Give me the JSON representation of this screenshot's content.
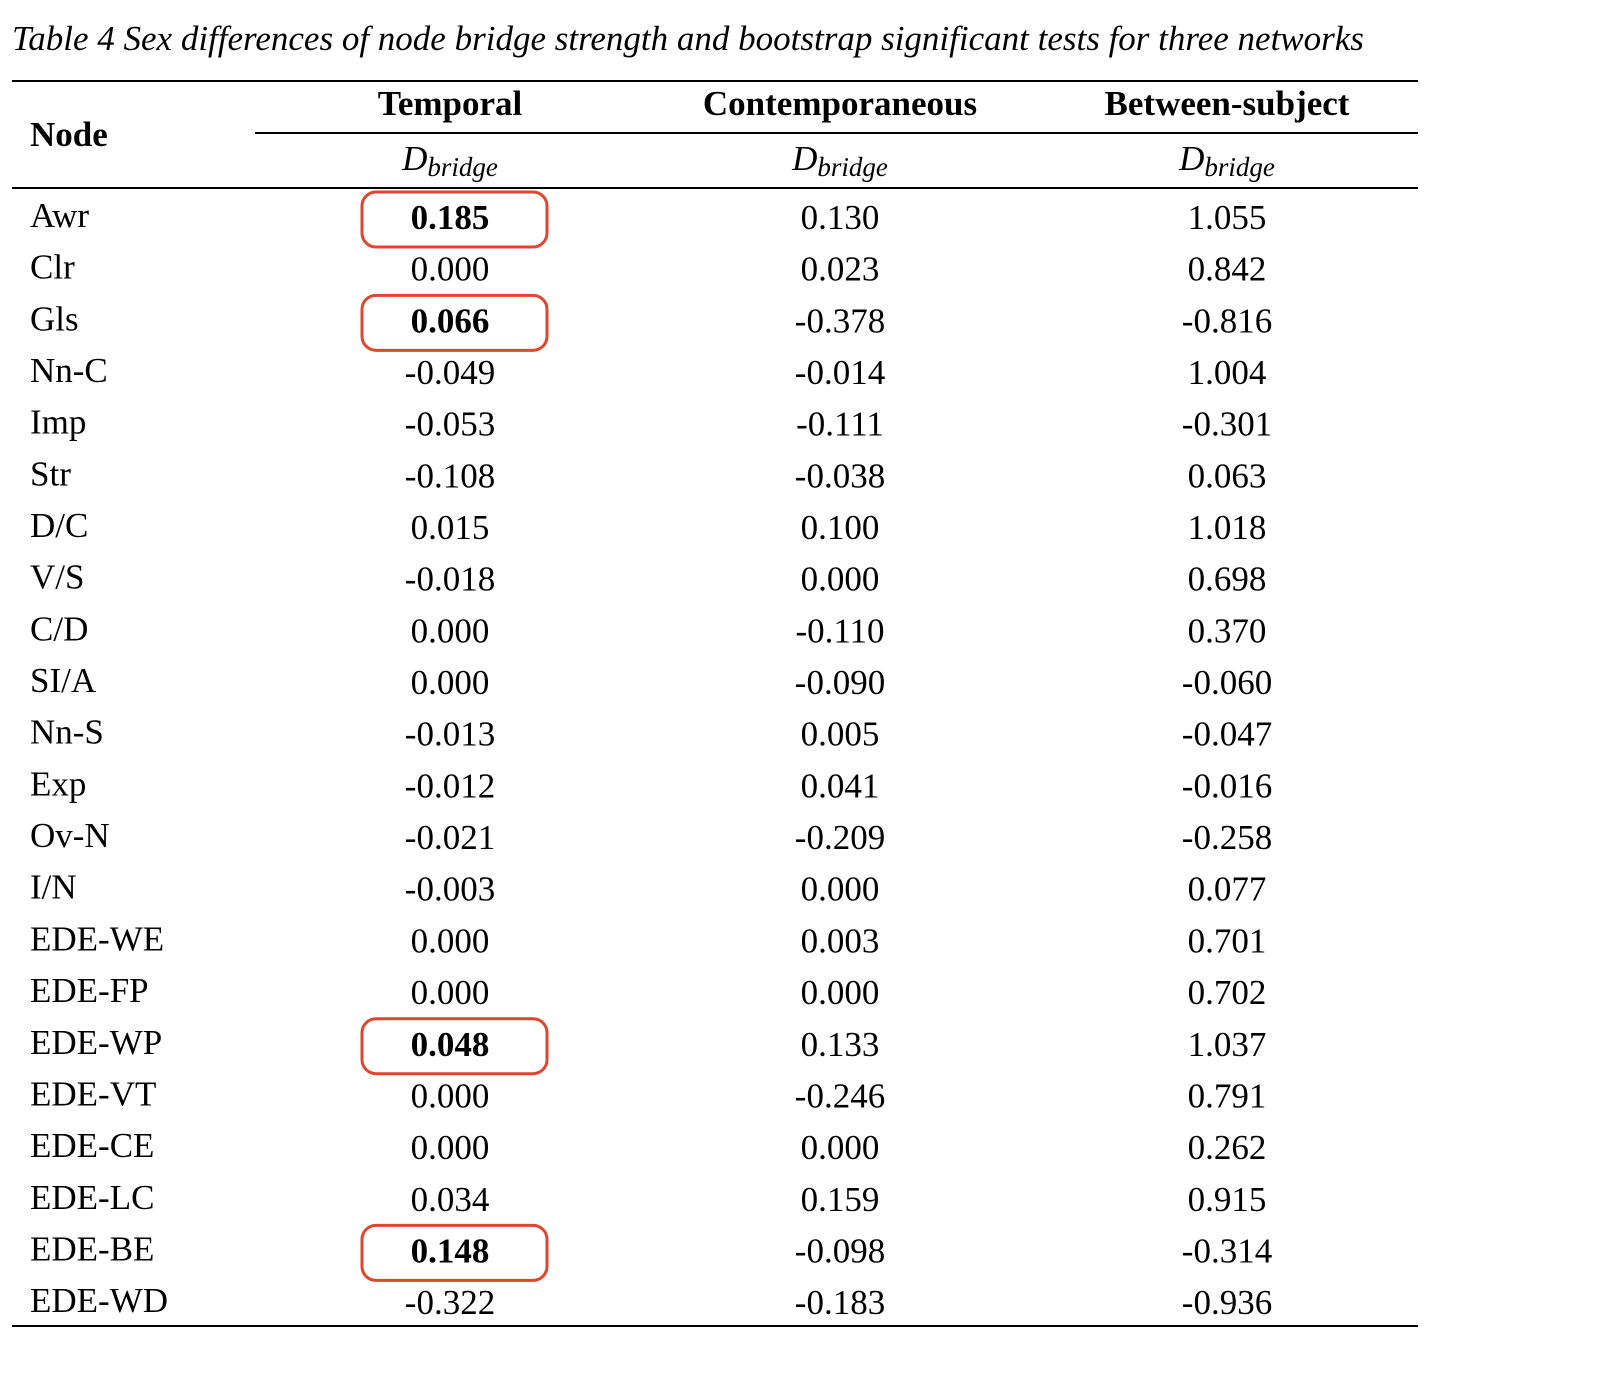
{
  "caption": "Table 4 Sex differences of node bridge strength and bootstrap significant tests for three networks",
  "table": {
    "header": {
      "node": "Node",
      "groups": [
        "Temporal",
        "Contemporaneous",
        "Between-subject"
      ],
      "measure": {
        "symbol": "D",
        "subscript": "bridge"
      }
    },
    "rows": [
      [
        "Awr",
        {
          "text": "0.185",
          "bold": true
        },
        "0.130",
        "1.055"
      ],
      [
        "Clr",
        "0.000",
        "0.023",
        "0.842"
      ],
      [
        "Gls",
        {
          "text": "0.066",
          "bold": true
        },
        "-0.378",
        "-0.816"
      ],
      [
        "Nn-C",
        "-0.049",
        "-0.014",
        "1.004"
      ],
      [
        "Imp",
        "-0.053",
        "-0.111",
        "-0.301"
      ],
      [
        "Str",
        "-0.108",
        "-0.038",
        "0.063"
      ],
      [
        "D/C",
        "0.015",
        "0.100",
        "1.018"
      ],
      [
        "V/S",
        "-0.018",
        "0.000",
        "0.698"
      ],
      [
        "C/D",
        "0.000",
        "-0.110",
        "0.370"
      ],
      [
        "SI/A",
        "0.000",
        "-0.090",
        "-0.060"
      ],
      [
        "Nn-S",
        "-0.013",
        "0.005",
        "-0.047"
      ],
      [
        "Exp",
        "-0.012",
        "0.041",
        "-0.016"
      ],
      [
        "Ov-N",
        "-0.021",
        "-0.209",
        "-0.258"
      ],
      [
        "I/N",
        "-0.003",
        "0.000",
        "0.077"
      ],
      [
        "EDE-WE",
        "0.000",
        "0.003",
        "0.701"
      ],
      [
        "EDE-FP",
        "0.000",
        "0.000",
        "0.702"
      ],
      [
        "EDE-WP",
        {
          "text": "0.048",
          "bold": true
        },
        "0.133",
        "1.037"
      ],
      [
        "EDE-VT",
        "0.000",
        "-0.246",
        "0.791"
      ],
      [
        "EDE-CE",
        "0.000",
        "0.000",
        "0.262"
      ],
      [
        "EDE-LC",
        "0.034",
        "0.159",
        "0.915"
      ],
      [
        "EDE-BE",
        {
          "text": "0.148",
          "bold": true
        },
        "-0.098",
        "-0.314"
      ],
      [
        "EDE-WD",
        "-0.322",
        "-0.183",
        "-0.936"
      ]
    ]
  }
}
